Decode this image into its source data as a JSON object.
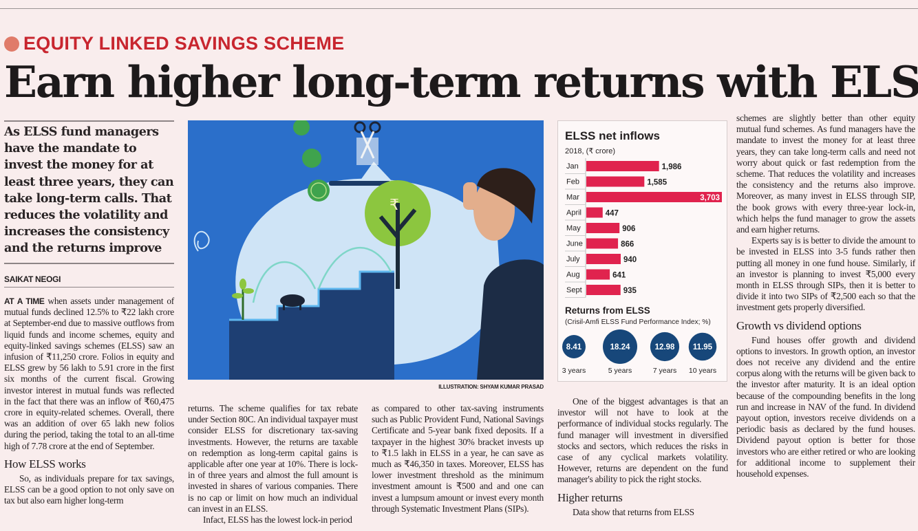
{
  "kicker": "EQUITY LINKED SAVINGS SCHEME",
  "headline": "Earn higher long-term returns with ELSS",
  "pull_quote": "As ELSS fund managers have the mandate to invest the money for at least three years, they can take long-term calls. That reduces the volatility and increases the consistency and the returns improve",
  "byline": "SAIKAT NEOGI",
  "illustration": {
    "credit": "ILLUSTRATION: SHYAM KUMAR PRASAD",
    "coin_symbol": "₹"
  },
  "columns": {
    "c1": {
      "lead_in": "AT A TIME",
      "p1": " when assets under management of mutual funds declined 12.5% to ₹22 lakh crore at September-end due to massive outflows from liquid funds and income schemes, equity and equity-linked savings schemes (ELSS) saw an infusion of ₹11,250 crore. Folios in equity and ELSS grew by 56 lakh to 5.91 crore in the first six months of the current fiscal. Growing investor interest in mutual funds was reflected in the fact that there was an inflow of ₹60,475 crore in equity-related schemes. Overall, there was an addition of over 65 lakh new folios during the period, taking the total to an all-time high of 7.78 crore at the end of September.",
      "subhead": "How ELSS works",
      "p2": "So, as individuals prepare for tax savings, ELSS can be a good option to not only save on tax but also earn higher long-term"
    },
    "c2": {
      "p1": "returns. The scheme qualifies for tax rebate under Section 80C. An individual taxpayer must consider ELSS for discretionary tax-saving investments. However, the returns are taxable on redemption as long-term capital gains is applicable after one year at 10%. There is lock-in of three years and almost the full amount is invested in shares of various companies. There is no cap or limit on how much an individual can invest in an ELSS.",
      "p2": "Infact, ELSS has the lowest lock-in period"
    },
    "c3": {
      "p1": "as compared to other tax-saving instruments such as Public Provident Fund, National Savings Certificate and 5-year bank fixed deposits. If a taxpayer in the highest 30% bracket invests up to ₹1.5 lakh in ELSS in a year, he can save as much as ₹46,350 in taxes. Moreover, ELSS has lower investment threshold as the minimum investment amount is ₹500 and and one can invest a lumpsum amount or invest every month through Systematic Investment Plans (SIPs)."
    },
    "c4": {
      "p1": "One of the biggest advantages is that an investor will not have to look at the performance of individual stocks regularly. The fund manager will investment in diversified stocks and sectors, which reduces the risks in case of any cyclical markets volatility. However, returns are dependent on the fund manager's ability to pick the right stocks.",
      "subhead": "Higher returns",
      "p2": "Data show that returns from ELSS"
    },
    "c5": {
      "p1": "schemes are slightly better than other equity mutual fund schemes. As fund managers have the mandate to invest the money for at least three years, they can take long-term calls and need not worry about quick or fast redemption from the scheme. That reduces the volatility and increases the consistency and the returns also improve. Moreover, as many invest in ELSS through SIP, the book grows with every three-year lock-in, which helps the fund manager to grow the assets and earn higher returns.",
      "p2": "Experts say is is better to divide the amount to be invested in ELSS into 3-5 funds rather then putting all money in one fund house. Similarly, if an investor is planning to invest ₹5,000 every month in ELSS through SIPs, then it is better to divide it into two SIPs of ₹2,500 each so that the investment gets properly diversified.",
      "subhead": "Growth vs dividend options",
      "p3": "Fund houses offer growth and dividend options to investors. In growth option, an investor does not receive any dividend and the entire corpus along with the returns will be given back to the investor after maturity. It is an ideal option because of the compounding benefits in the long run and increase in NAV of the fund. In dividend payout option, investors receive dividends on a periodic basis as declared by the fund houses. Dividend payout option is better for those investors who are either retired or who are looking for additional income to supplement their household expenses."
    }
  },
  "chart_data": [
    {
      "type": "bar",
      "orientation": "horizontal",
      "title": "ELSS net inflows",
      "subtitle": "2018, (₹ crore)",
      "categories": [
        "Jan",
        "Feb",
        "Mar",
        "April",
        "May",
        "June",
        "July",
        "Aug",
        "Sept"
      ],
      "values": [
        1986,
        1585,
        3703,
        447,
        906,
        866,
        940,
        641,
        935
      ],
      "labels": [
        "1,986",
        "1,585",
        "3,703",
        "447",
        "906",
        "866",
        "940",
        "641",
        "935"
      ],
      "color": "#e0234e"
    },
    {
      "type": "bubble",
      "title": "Returns from ELSS",
      "subtitle": "(Crisil-Amfi ELSS Fund Performance Index; %)",
      "categories": [
        "3 years",
        "5 years",
        "7 years",
        "10 years"
      ],
      "values": [
        8.41,
        18.24,
        12.98,
        11.95
      ],
      "labels": [
        "8.41",
        "18.24",
        "12.98",
        "11.95"
      ],
      "color": "#17477a"
    }
  ],
  "colors": {
    "kicker": "#c8262f",
    "kicker_dot": "#e07b69",
    "background": "#f9eded",
    "illustration_bg": "#2b6fca"
  }
}
